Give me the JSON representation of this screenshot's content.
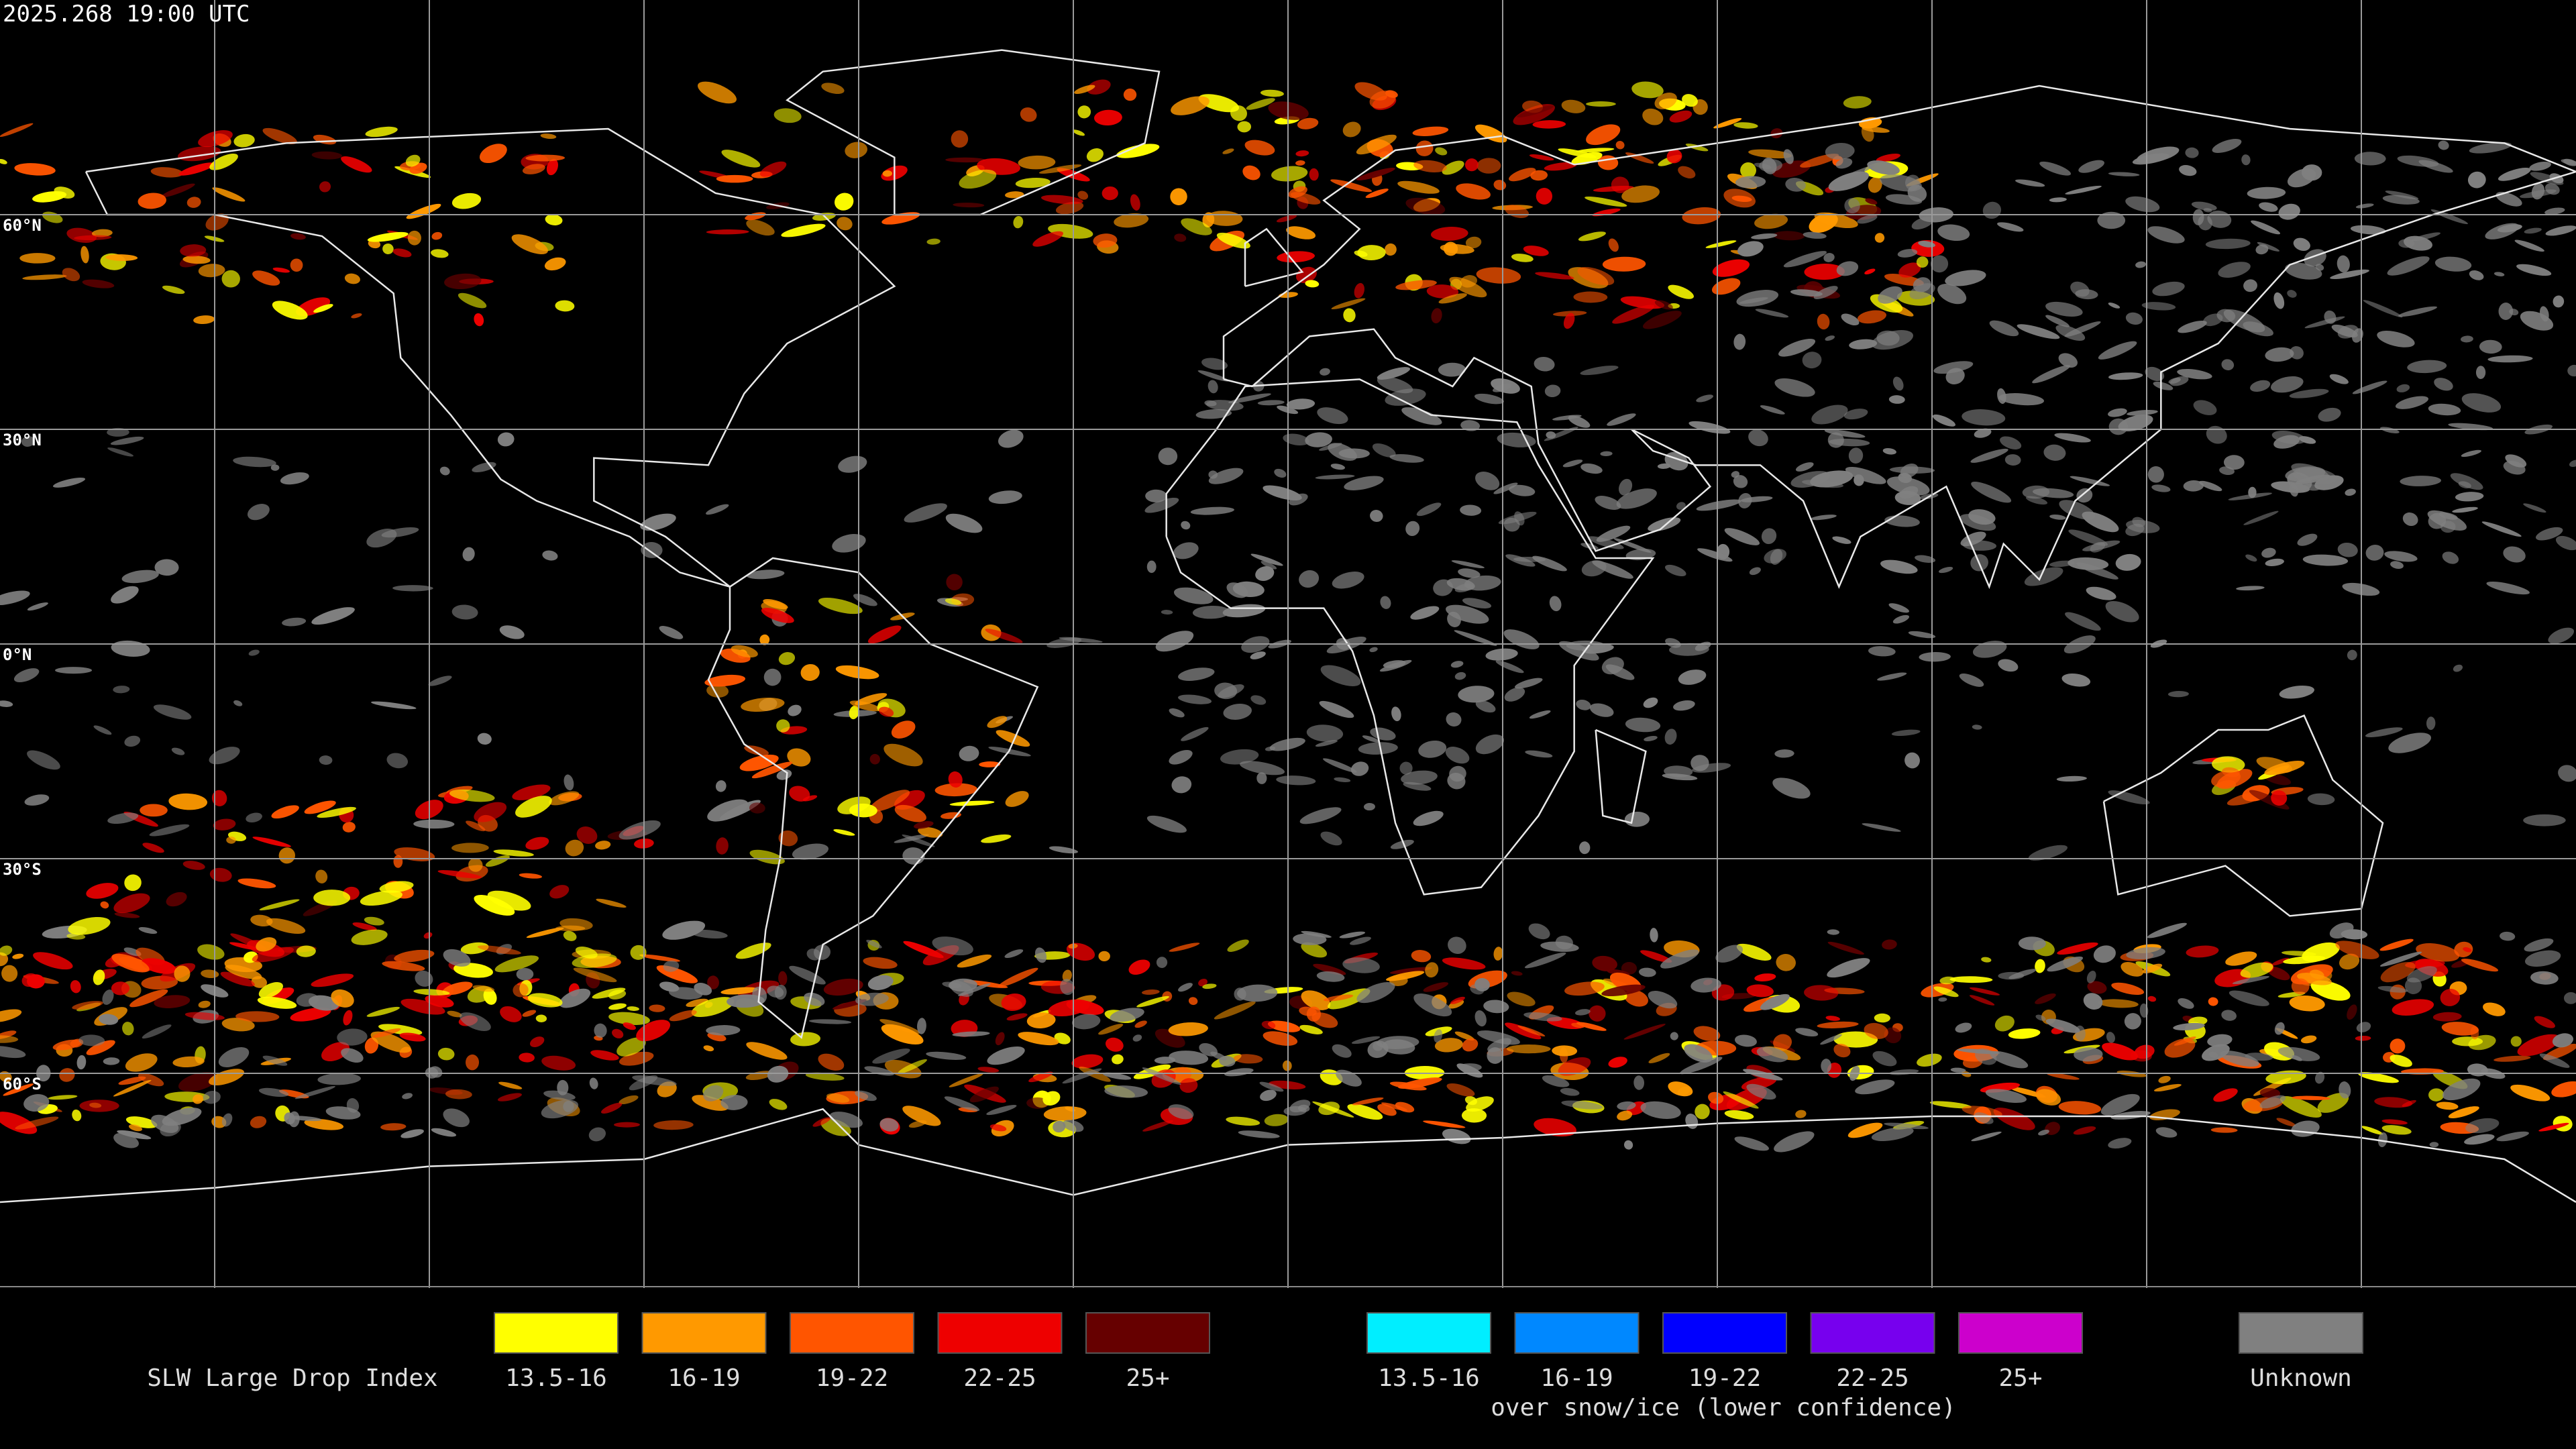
{
  "map": {
    "timestamp": "2025.268 19:00 UTC",
    "latitude_labels": [
      "60°N",
      "30°N",
      "0°N",
      "30°S",
      "60°S"
    ]
  },
  "legend": {
    "title": "SLW Large Drop Index",
    "items": [
      {
        "label": "13.5-16",
        "color": "#ffff00"
      },
      {
        "label": "16-19",
        "color": "#ff9900"
      },
      {
        "label": "19-22",
        "color": "#ff5500"
      },
      {
        "label": "22-25",
        "color": "#ee0000"
      },
      {
        "label": "25+",
        "color": "#660000"
      }
    ],
    "snow_ice_items": [
      {
        "label": "13.5-16",
        "color": "#00eeff"
      },
      {
        "label": "16-19",
        "color": "#0088ff"
      },
      {
        "label": "19-22",
        "color": "#0000ff"
      },
      {
        "label": "22-25",
        "color": "#7700ee"
      },
      {
        "label": "25+",
        "color": "#cc00cc"
      }
    ],
    "snow_ice_note": "over snow/ice (lower confidence)",
    "unknown": {
      "label": "Unknown",
      "color": "#808080"
    }
  }
}
